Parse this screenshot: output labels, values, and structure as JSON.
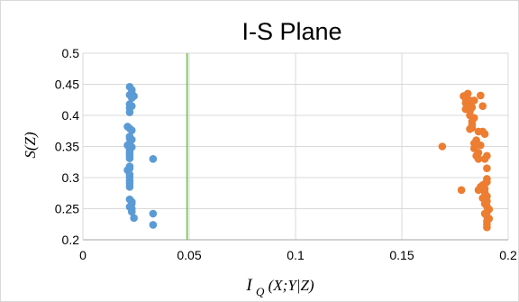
{
  "chart_data": {
    "type": "scatter",
    "title": "I-S Plane",
    "xlabel": "I_Q(X;Y|Z)",
    "xlabel_main": "I",
    "xlabel_sub": "Q",
    "xlabel_rest": "(X;Y|Z)",
    "ylabel": "S(Z)",
    "xlim": [
      0,
      0.2
    ],
    "ylim": [
      0.2,
      0.5
    ],
    "x_ticks": [
      0,
      0.05,
      0.1,
      0.15,
      0.2
    ],
    "x_tick_labels": [
      "0",
      "0.05",
      "0.1",
      "0.15",
      "0.2"
    ],
    "y_ticks": [
      0.2,
      0.25,
      0.3,
      0.35,
      0.4,
      0.45,
      0.5
    ],
    "y_tick_labels": [
      "0.2",
      "0.25",
      "0.3",
      "0.35",
      "0.4",
      "0.45",
      "0.5"
    ],
    "grid": true,
    "vertical_line": {
      "x": 0.049,
      "color": "#70c04a"
    },
    "series": [
      {
        "color": "#5b9bd5",
        "points": [
          [
            0.022,
            0.446
          ],
          [
            0.023,
            0.441
          ],
          [
            0.023,
            0.436
          ],
          [
            0.022,
            0.433
          ],
          [
            0.024,
            0.431
          ],
          [
            0.023,
            0.428
          ],
          [
            0.022,
            0.418
          ],
          [
            0.023,
            0.415
          ],
          [
            0.022,
            0.412
          ],
          [
            0.022,
            0.405
          ],
          [
            0.021,
            0.382
          ],
          [
            0.022,
            0.379
          ],
          [
            0.023,
            0.376
          ],
          [
            0.022,
            0.366
          ],
          [
            0.022,
            0.363
          ],
          [
            0.023,
            0.361
          ],
          [
            0.022,
            0.355
          ],
          [
            0.021,
            0.352
          ],
          [
            0.023,
            0.349
          ],
          [
            0.022,
            0.345
          ],
          [
            0.022,
            0.341
          ],
          [
            0.022,
            0.338
          ],
          [
            0.022,
            0.335
          ],
          [
            0.022,
            0.331
          ],
          [
            0.033,
            0.33
          ],
          [
            0.022,
            0.318
          ],
          [
            0.022,
            0.315
          ],
          [
            0.021,
            0.312
          ],
          [
            0.022,
            0.305
          ],
          [
            0.022,
            0.301
          ],
          [
            0.022,
            0.295
          ],
          [
            0.022,
            0.29
          ],
          [
            0.022,
            0.285
          ],
          [
            0.022,
            0.265
          ],
          [
            0.023,
            0.261
          ],
          [
            0.023,
            0.258
          ],
          [
            0.022,
            0.253
          ],
          [
            0.023,
            0.25
          ],
          [
            0.023,
            0.245
          ],
          [
            0.024,
            0.235
          ],
          [
            0.033,
            0.242
          ],
          [
            0.033,
            0.224
          ]
        ]
      },
      {
        "color": "#ed7d31",
        "points": [
          [
            0.181,
            0.435
          ],
          [
            0.187,
            0.432
          ],
          [
            0.179,
            0.431
          ],
          [
            0.18,
            0.427
          ],
          [
            0.182,
            0.424
          ],
          [
            0.18,
            0.42
          ],
          [
            0.181,
            0.416
          ],
          [
            0.183,
            0.413
          ],
          [
            0.18,
            0.41
          ],
          [
            0.182,
            0.407
          ],
          [
            0.184,
            0.424
          ],
          [
            0.188,
            0.415
          ],
          [
            0.182,
            0.4
          ],
          [
            0.184,
            0.396
          ],
          [
            0.183,
            0.39
          ],
          [
            0.183,
            0.385
          ],
          [
            0.183,
            0.38
          ],
          [
            0.182,
            0.378
          ],
          [
            0.188,
            0.374
          ],
          [
            0.189,
            0.37
          ],
          [
            0.186,
            0.374
          ],
          [
            0.185,
            0.36
          ],
          [
            0.184,
            0.355
          ],
          [
            0.187,
            0.352
          ],
          [
            0.184,
            0.347
          ],
          [
            0.186,
            0.34
          ],
          [
            0.185,
            0.335
          ],
          [
            0.19,
            0.335
          ],
          [
            0.189,
            0.33
          ],
          [
            0.186,
            0.33
          ],
          [
            0.169,
            0.35
          ],
          [
            0.19,
            0.315
          ],
          [
            0.19,
            0.298
          ],
          [
            0.19,
            0.293
          ],
          [
            0.189,
            0.29
          ],
          [
            0.188,
            0.288
          ],
          [
            0.187,
            0.285
          ],
          [
            0.189,
            0.282
          ],
          [
            0.186,
            0.28
          ],
          [
            0.189,
            0.276
          ],
          [
            0.19,
            0.27
          ],
          [
            0.188,
            0.267
          ],
          [
            0.19,
            0.262
          ],
          [
            0.189,
            0.258
          ],
          [
            0.19,
            0.254
          ],
          [
            0.191,
            0.249
          ],
          [
            0.19,
            0.245
          ],
          [
            0.189,
            0.242
          ],
          [
            0.19,
            0.238
          ],
          [
            0.191,
            0.234
          ],
          [
            0.19,
            0.23
          ],
          [
            0.19,
            0.225
          ],
          [
            0.19,
            0.22
          ],
          [
            0.178,
            0.28
          ]
        ]
      }
    ]
  }
}
